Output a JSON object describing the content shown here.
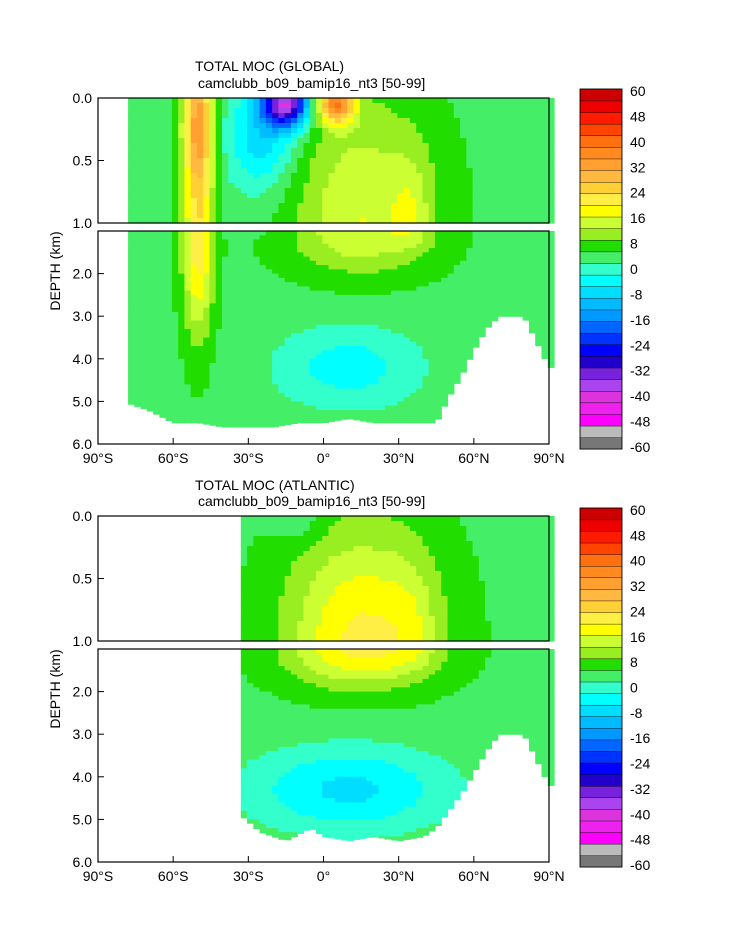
{
  "chart_data": [
    {
      "type": "heatmap",
      "title": "TOTAL MOC (GLOBAL)",
      "subtitle": "camclubb_b09_bamip16_nt3 [50-99]",
      "xlabel": "",
      "ylabel": "DEPTH (km)",
      "xlim": [
        -90,
        90
      ],
      "ylim_upper": [
        0.0,
        1.0
      ],
      "ylim_lower": [
        1.0,
        6.0
      ],
      "x_ticks": [
        {
          "value": -90,
          "label": "90°S"
        },
        {
          "value": -60,
          "label": "60°S"
        },
        {
          "value": -30,
          "label": "30°S"
        },
        {
          "value": 0,
          "label": "0°"
        },
        {
          "value": 30,
          "label": "30°N"
        },
        {
          "value": 60,
          "label": "60°N"
        },
        {
          "value": 90,
          "label": "90°N"
        }
      ],
      "y_ticks_upper": [
        {
          "value": 0.0,
          "label": "0.0"
        },
        {
          "value": 0.5,
          "label": "0.5"
        },
        {
          "value": 1.0,
          "label": "1.0"
        }
      ],
      "y_ticks_lower": [
        {
          "value": 2.0,
          "label": "2.0"
        },
        {
          "value": 3.0,
          "label": "3.0"
        },
        {
          "value": 4.0,
          "label": "4.0"
        },
        {
          "value": 5.0,
          "label": "5.0"
        },
        {
          "value": 6.0,
          "label": "6.0"
        }
      ],
      "features": [
        {
          "lat": -50,
          "depth": 1.2,
          "value": 20,
          "sx": 6,
          "sy": 2.2
        },
        {
          "lat": -50,
          "depth": 0.2,
          "value": 16,
          "sx": 6,
          "sy": 0.5
        },
        {
          "lat": -15,
          "depth": 0.05,
          "value": -44,
          "sx": 9,
          "sy": 0.18
        },
        {
          "lat": -25,
          "depth": 0.3,
          "value": -14,
          "sx": 14,
          "sy": 0.45
        },
        {
          "lat": 5,
          "depth": 0.05,
          "value": 34,
          "sx": 7,
          "sy": 0.15
        },
        {
          "lat": 15,
          "depth": 1.0,
          "value": 13,
          "sx": 28,
          "sy": 1.0
        },
        {
          "lat": 35,
          "depth": 0.9,
          "value": 6,
          "sx": 8,
          "sy": 0.5
        },
        {
          "lat": 10,
          "depth": 4.2,
          "value": -9,
          "sx": 30,
          "sy": 1.0
        }
      ],
      "colorbar": {
        "levels": [
          -60,
          -56,
          -52,
          -48,
          -44,
          -40,
          -36,
          -32,
          -28,
          -24,
          -20,
          -16,
          -12,
          -8,
          -4,
          0,
          4,
          8,
          12,
          16,
          20,
          24,
          28,
          32,
          36,
          40,
          44,
          48,
          52,
          56,
          60
        ],
        "colors": [
          "#777777",
          "#bbbbbb",
          "#ff00ff",
          "#ee22ee",
          "#dd33dd",
          "#aa44ee",
          "#7722dd",
          "#2200cc",
          "#0000ff",
          "#0033ff",
          "#0066ff",
          "#0099ff",
          "#00bbff",
          "#00ddff",
          "#00ffff",
          "#33ffcc",
          "#44ee66",
          "#22dd00",
          "#99ee22",
          "#ccff33",
          "#ffff00",
          "#ffee44",
          "#ffd035",
          "#ffb840",
          "#ffa030",
          "#ff8a20",
          "#ff7010",
          "#ff4400",
          "#ff1a00",
          "#ee0000",
          "#cc0000"
        ],
        "labels": [
          "60",
          "48",
          "40",
          "32",
          "24",
          "16",
          "8",
          "0",
          "-8",
          "-16",
          "-24",
          "-32",
          "-40",
          "-48",
          "-60"
        ]
      }
    },
    {
      "type": "heatmap",
      "title": "TOTAL MOC (ATLANTIC)",
      "subtitle": "camclubb_b09_bamip16_nt3 [50-99]",
      "xlabel": "",
      "ylabel": "DEPTH (km)",
      "xlim": [
        -90,
        90
      ],
      "ylim_upper": [
        0.0,
        1.0
      ],
      "ylim_lower": [
        1.0,
        6.0
      ],
      "x_ticks": [
        {
          "value": -90,
          "label": "90°S"
        },
        {
          "value": -60,
          "label": "60°S"
        },
        {
          "value": -30,
          "label": "30°S"
        },
        {
          "value": 0,
          "label": "0°"
        },
        {
          "value": 30,
          "label": "30°N"
        },
        {
          "value": 60,
          "label": "60°N"
        },
        {
          "value": 90,
          "label": "90°N"
        }
      ],
      "y_ticks_upper": [
        {
          "value": 0.0,
          "label": "0.0"
        },
        {
          "value": 0.5,
          "label": "0.5"
        },
        {
          "value": 1.0,
          "label": "1.0"
        }
      ],
      "y_ticks_lower": [
        {
          "value": 2.0,
          "label": "2.0"
        },
        {
          "value": 3.0,
          "label": "3.0"
        },
        {
          "value": 4.0,
          "label": "4.0"
        },
        {
          "value": 5.0,
          "label": "5.0"
        },
        {
          "value": 6.0,
          "label": "6.0"
        }
      ],
      "features": [
        {
          "lat": 15,
          "depth": 1.0,
          "value": 18,
          "sx": 30,
          "sy": 0.9
        },
        {
          "lat": 35,
          "depth": 0.9,
          "value": 4,
          "sx": 10,
          "sy": 0.6
        },
        {
          "lat": -10,
          "depth": 0.05,
          "value": -4,
          "sx": 10,
          "sy": 0.15
        },
        {
          "lat": 10,
          "depth": 4.3,
          "value": -12,
          "sx": 40,
          "sy": 1.0
        }
      ],
      "colorbar": {
        "levels": [
          -60,
          -56,
          -52,
          -48,
          -44,
          -40,
          -36,
          -32,
          -28,
          -24,
          -20,
          -16,
          -12,
          -8,
          -4,
          0,
          4,
          8,
          12,
          16,
          20,
          24,
          28,
          32,
          36,
          40,
          44,
          48,
          52,
          56,
          60
        ],
        "colors": [
          "#777777",
          "#bbbbbb",
          "#ff00ff",
          "#ee22ee",
          "#dd33dd",
          "#aa44ee",
          "#7722dd",
          "#2200cc",
          "#0000ff",
          "#0033ff",
          "#0066ff",
          "#0099ff",
          "#00bbff",
          "#00ddff",
          "#00ffff",
          "#33ffcc",
          "#44ee66",
          "#22dd00",
          "#99ee22",
          "#ccff33",
          "#ffff00",
          "#ffee44",
          "#ffd035",
          "#ffb840",
          "#ffa030",
          "#ff8a20",
          "#ff7010",
          "#ff4400",
          "#ff1a00",
          "#ee0000",
          "#cc0000"
        ],
        "labels": [
          "60",
          "48",
          "40",
          "32",
          "24",
          "16",
          "8",
          "0",
          "-8",
          "-16",
          "-24",
          "-32",
          "-40",
          "-48",
          "-60"
        ]
      }
    }
  ]
}
